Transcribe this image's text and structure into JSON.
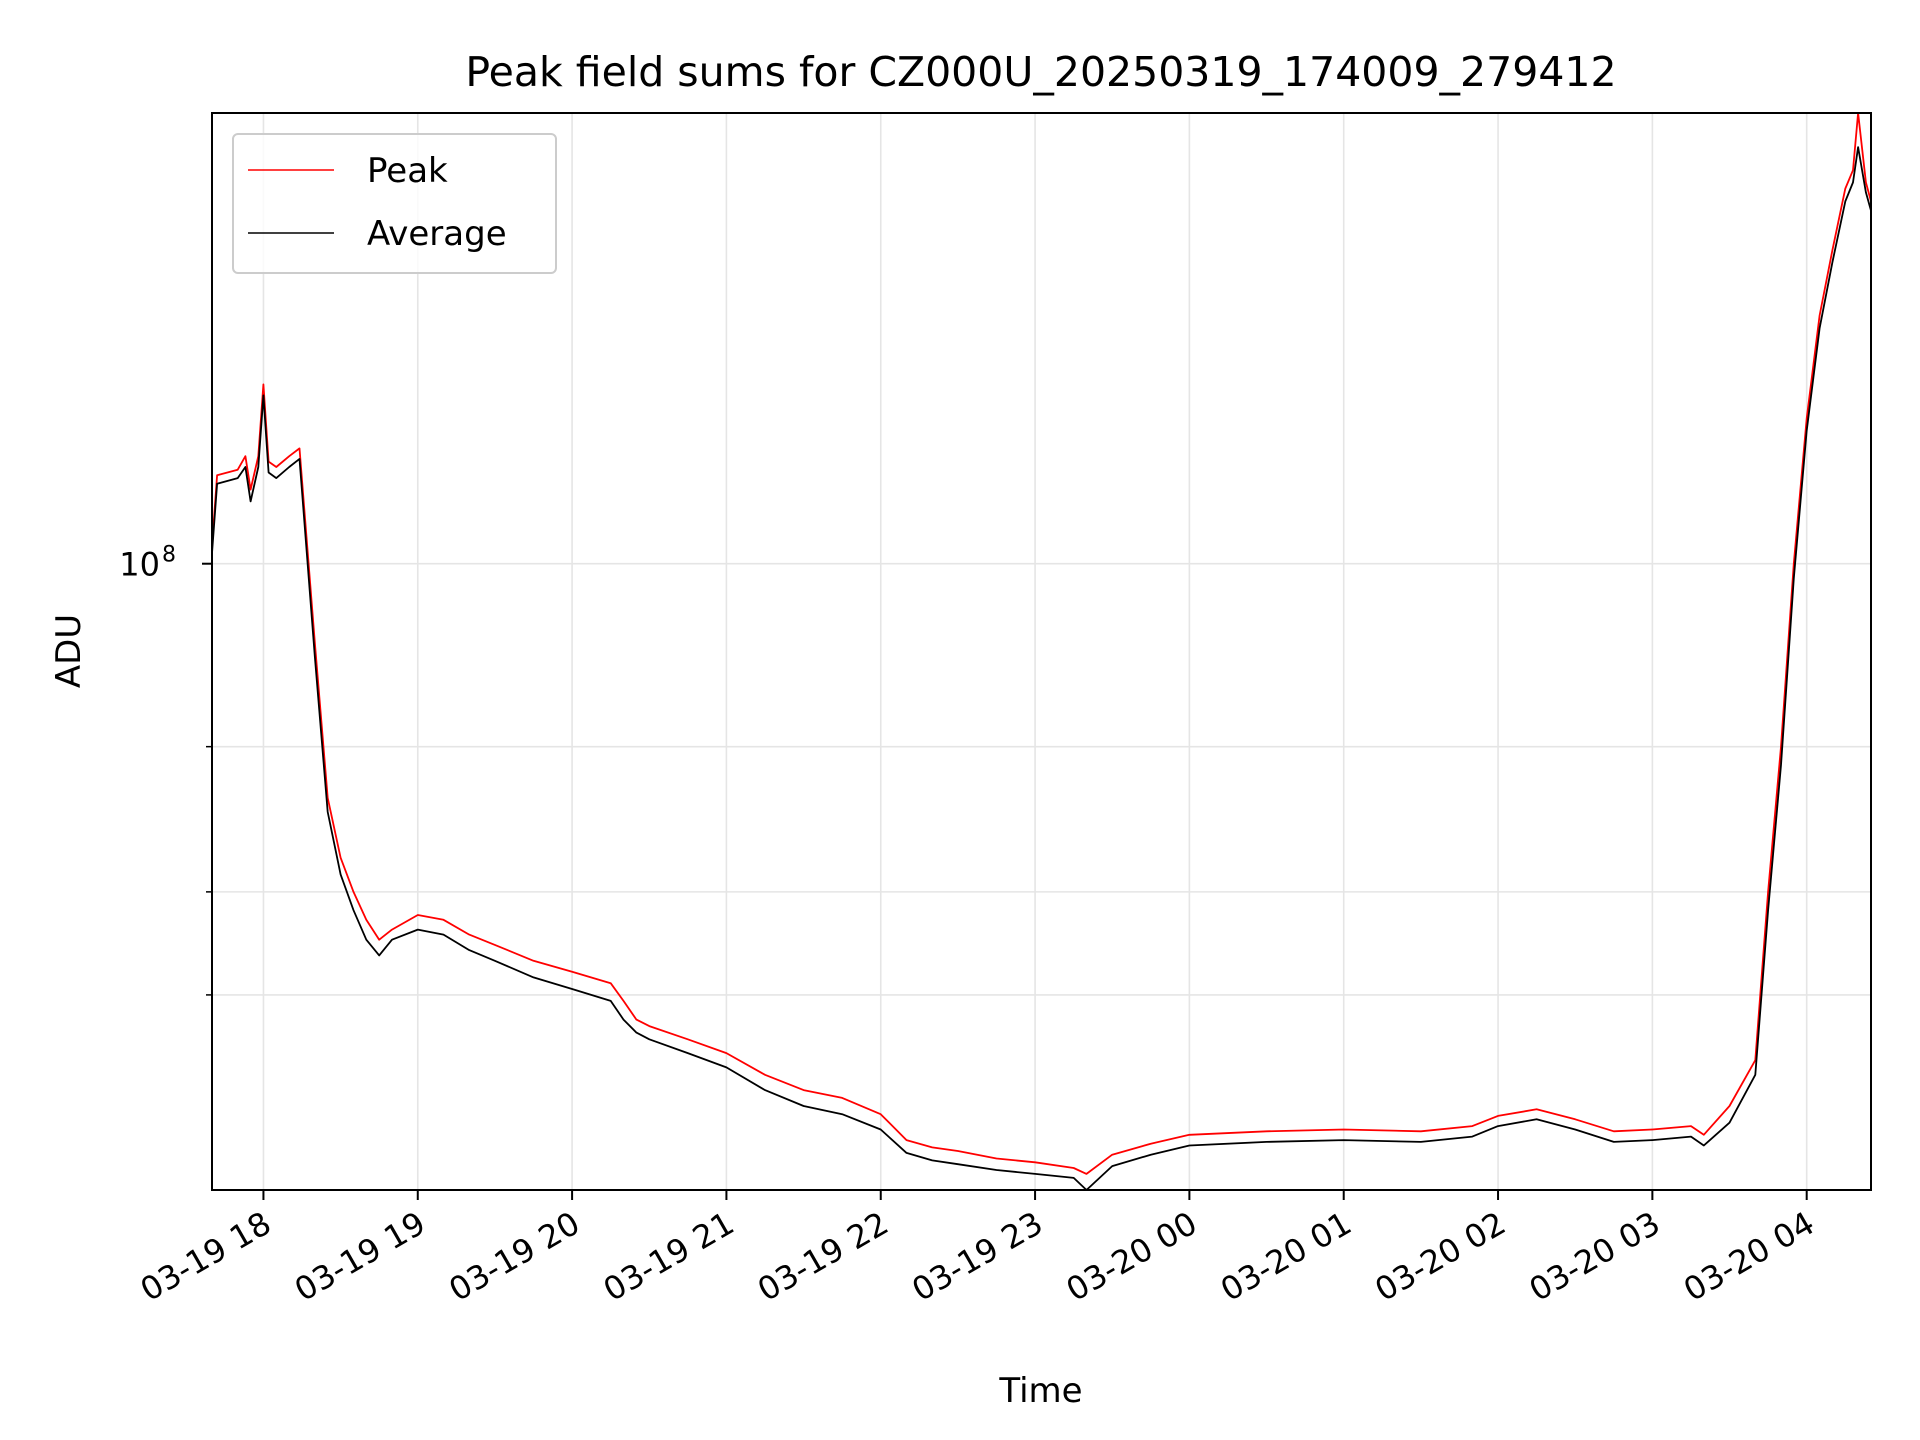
{
  "chart_data": {
    "type": "line",
    "title": "Peak field sums for CZ000U_20250319_174009_279412",
    "xlabel": "Time",
    "ylabel": "ADU",
    "y_scale": "log",
    "ylim": [
      17400000,
      352000000
    ],
    "xlim": [
      "2025-03-19 17:40",
      "2025-03-20 04:25"
    ],
    "x_ticks": [
      "03-19 18",
      "03-19 19",
      "03-19 20",
      "03-19 21",
      "03-19 22",
      "03-19 23",
      "03-20 00",
      "03-20 01",
      "03-20 02",
      "03-20 03",
      "03-20 04"
    ],
    "x_tick_times": [
      "2025-03-19 18:00",
      "2025-03-19 19:00",
      "2025-03-19 20:00",
      "2025-03-19 21:00",
      "2025-03-19 22:00",
      "2025-03-19 23:00",
      "2025-03-20 00:00",
      "2025-03-20 01:00",
      "2025-03-20 02:00",
      "2025-03-20 03:00",
      "2025-03-20 04:00"
    ],
    "y_major_tick_labels": [
      {
        "value": 100000000,
        "base": "10",
        "exp": "8"
      }
    ],
    "y_minor_ticks": [
      30000000,
      40000000,
      60000000
    ],
    "grid": true,
    "legend_position": "top-left",
    "series": [
      {
        "name": "Peak",
        "color": "#ff0000",
        "x": [
          "2025-03-19 17:40",
          "2025-03-19 17:42",
          "2025-03-19 17:50",
          "2025-03-19 17:53",
          "2025-03-19 17:55",
          "2025-03-19 17:58",
          "2025-03-19 18:00",
          "2025-03-19 18:02",
          "2025-03-19 18:05",
          "2025-03-19 18:10",
          "2025-03-19 18:14",
          "2025-03-19 18:20",
          "2025-03-19 18:25",
          "2025-03-19 18:30",
          "2025-03-19 18:35",
          "2025-03-19 18:40",
          "2025-03-19 18:45",
          "2025-03-19 18:50",
          "2025-03-19 19:00",
          "2025-03-19 19:10",
          "2025-03-19 19:20",
          "2025-03-19 19:30",
          "2025-03-19 19:45",
          "2025-03-19 20:00",
          "2025-03-19 20:15",
          "2025-03-19 20:20",
          "2025-03-19 20:25",
          "2025-03-19 20:30",
          "2025-03-19 20:45",
          "2025-03-19 21:00",
          "2025-03-19 21:15",
          "2025-03-19 21:30",
          "2025-03-19 21:45",
          "2025-03-19 22:00",
          "2025-03-19 22:10",
          "2025-03-19 22:20",
          "2025-03-19 22:30",
          "2025-03-19 22:45",
          "2025-03-19 23:00",
          "2025-03-19 23:15",
          "2025-03-19 23:20",
          "2025-03-19 23:30",
          "2025-03-19 23:45",
          "2025-03-20 00:00",
          "2025-03-20 00:30",
          "2025-03-20 01:00",
          "2025-03-20 01:30",
          "2025-03-20 01:50",
          "2025-03-20 02:00",
          "2025-03-20 02:15",
          "2025-03-20 02:30",
          "2025-03-20 02:45",
          "2025-03-20 03:00",
          "2025-03-20 03:15",
          "2025-03-20 03:20",
          "2025-03-20 03:30",
          "2025-03-20 03:40",
          "2025-03-20 03:45",
          "2025-03-20 03:50",
          "2025-03-20 03:55",
          "2025-03-20 04:00",
          "2025-03-20 04:05",
          "2025-03-20 04:10",
          "2025-03-20 04:15",
          "2025-03-20 04:18",
          "2025-03-20 04:20",
          "2025-03-20 04:23",
          "2025-03-20 04:25"
        ],
        "y": [
          105000000,
          128000000,
          130000000,
          135000000,
          123000000,
          135000000,
          165000000,
          133000000,
          131000000,
          135000000,
          138000000,
          80000000,
          52000000,
          44000000,
          40000000,
          37000000,
          35000000,
          36000000,
          37500000,
          37000000,
          35500000,
          34500000,
          33000000,
          32000000,
          31000000,
          29500000,
          28000000,
          27500000,
          26500000,
          25500000,
          24000000,
          23000000,
          22500000,
          21500000,
          20000000,
          19600000,
          19400000,
          19000000,
          18800000,
          18500000,
          18200000,
          19200000,
          19800000,
          20300000,
          20500000,
          20600000,
          20500000,
          20800000,
          21400000,
          21800000,
          21200000,
          20500000,
          20600000,
          20800000,
          20300000,
          22000000,
          25000000,
          40000000,
          60000000,
          100000000,
          150000000,
          200000000,
          240000000,
          285000000,
          300000000,
          352000000,
          290000000,
          275000000
        ]
      },
      {
        "name": "Average",
        "color": "#000000",
        "x": [
          "2025-03-19 17:40",
          "2025-03-19 17:42",
          "2025-03-19 17:50",
          "2025-03-19 17:53",
          "2025-03-19 17:55",
          "2025-03-19 17:58",
          "2025-03-19 18:00",
          "2025-03-19 18:02",
          "2025-03-19 18:05",
          "2025-03-19 18:10",
          "2025-03-19 18:14",
          "2025-03-19 18:20",
          "2025-03-19 18:25",
          "2025-03-19 18:30",
          "2025-03-19 18:35",
          "2025-03-19 18:40",
          "2025-03-19 18:45",
          "2025-03-19 18:50",
          "2025-03-19 19:00",
          "2025-03-19 19:10",
          "2025-03-19 19:20",
          "2025-03-19 19:30",
          "2025-03-19 19:45",
          "2025-03-19 20:00",
          "2025-03-19 20:15",
          "2025-03-19 20:20",
          "2025-03-19 20:25",
          "2025-03-19 20:30",
          "2025-03-19 20:45",
          "2025-03-19 21:00",
          "2025-03-19 21:15",
          "2025-03-19 21:30",
          "2025-03-19 21:45",
          "2025-03-19 22:00",
          "2025-03-19 22:10",
          "2025-03-19 22:20",
          "2025-03-19 22:30",
          "2025-03-19 22:45",
          "2025-03-19 23:00",
          "2025-03-19 23:15",
          "2025-03-19 23:20",
          "2025-03-19 23:30",
          "2025-03-19 23:45",
          "2025-03-20 00:00",
          "2025-03-20 00:30",
          "2025-03-20 01:00",
          "2025-03-20 01:30",
          "2025-03-20 01:50",
          "2025-03-20 02:00",
          "2025-03-20 02:15",
          "2025-03-20 02:30",
          "2025-03-20 02:45",
          "2025-03-20 03:00",
          "2025-03-20 03:15",
          "2025-03-20 03:20",
          "2025-03-20 03:30",
          "2025-03-20 03:40",
          "2025-03-20 03:45",
          "2025-03-20 03:50",
          "2025-03-20 03:55",
          "2025-03-20 04:00",
          "2025-03-20 04:05",
          "2025-03-20 04:10",
          "2025-03-20 04:15",
          "2025-03-20 04:18",
          "2025-03-20 04:20",
          "2025-03-20 04:23",
          "2025-03-20 04:25"
        ],
        "y": [
          103000000,
          125000000,
          127000000,
          131000000,
          119000000,
          131000000,
          160000000,
          129000000,
          127000000,
          131000000,
          134000000,
          77000000,
          50000000,
          42000000,
          38000000,
          35000000,
          33500000,
          35000000,
          36000000,
          35500000,
          34000000,
          33000000,
          31500000,
          30500000,
          29500000,
          28000000,
          27000000,
          26500000,
          25500000,
          24500000,
          23000000,
          22000000,
          21500000,
          20600000,
          19300000,
          18900000,
          18700000,
          18400000,
          18200000,
          18000000,
          17400000,
          18600000,
          19200000,
          19700000,
          19900000,
          20000000,
          19900000,
          20200000,
          20800000,
          21200000,
          20600000,
          19900000,
          20000000,
          20200000,
          19700000,
          21000000,
          24000000,
          38000000,
          57000000,
          96000000,
          145000000,
          193000000,
          232000000,
          275000000,
          290000000,
          320000000,
          282000000,
          268000000
        ]
      }
    ]
  }
}
